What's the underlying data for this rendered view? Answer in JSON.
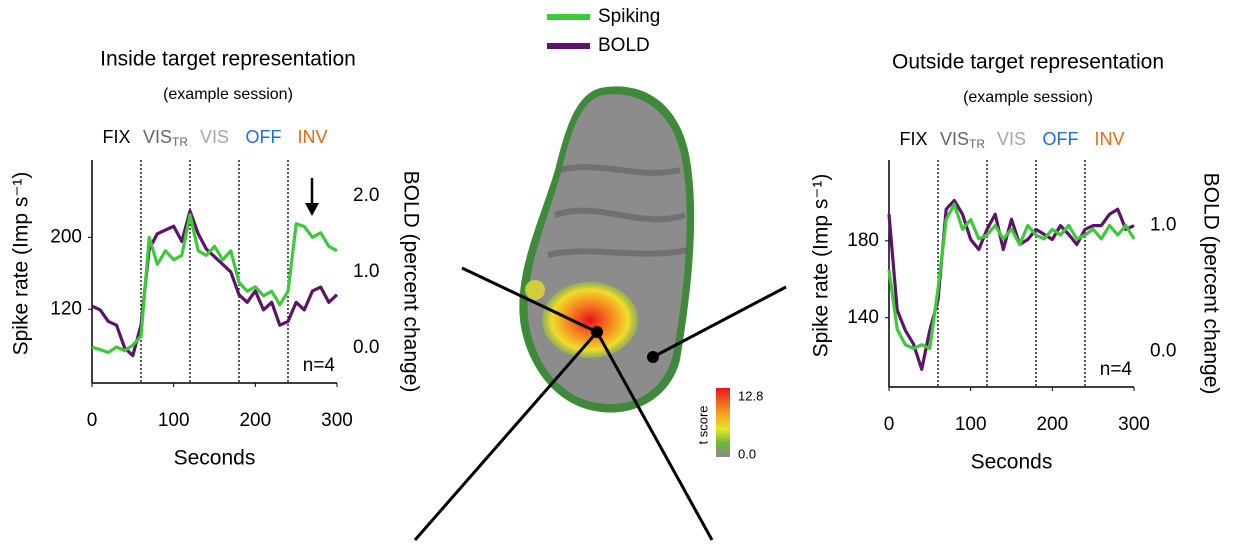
{
  "chart_data": [
    {
      "type": "line",
      "title": "Inside  target representation",
      "subtitle": "(example session)",
      "x_label": "Seconds",
      "y_label": "Spike rate (Imp s⁻¹)",
      "y2_label": "BOLD (percent change)",
      "annotation": "n=4",
      "phases": [
        {
          "label": "FIX",
          "color": "#000000"
        },
        {
          "label": "VIS",
          "sub": "TR",
          "color": "#666666"
        },
        {
          "label": "VIS",
          "color": "#a6a6a6"
        },
        {
          "label": "OFF",
          "color": "#1f6fd6"
        },
        {
          "label": "INV",
          "color": "#e86a10"
        }
      ],
      "xlines": [
        60,
        120,
        180,
        240
      ],
      "x": [
        0,
        10,
        20,
        30,
        40,
        50,
        60,
        70,
        80,
        90,
        100,
        110,
        120,
        130,
        140,
        150,
        160,
        170,
        180,
        190,
        200,
        210,
        220,
        230,
        240,
        250,
        260,
        270,
        280,
        290,
        300
      ],
      "series": [
        {
          "name": "Spiking",
          "color": "#3ec93a",
          "values": [
            78,
            75,
            72,
            78,
            74,
            80,
            90,
            200,
            170,
            185,
            175,
            180,
            225,
            185,
            180,
            190,
            175,
            185,
            150,
            140,
            145,
            135,
            140,
            125,
            140,
            215,
            212,
            200,
            205,
            190,
            185
          ]
        },
        {
          "name": "BOLD",
          "color": "#5c1468",
          "axis": "y2",
          "values": [
            0.55,
            0.5,
            0.35,
            0.3,
            0.0,
            -0.1,
            0.3,
            1.3,
            1.5,
            1.55,
            1.6,
            1.4,
            1.8,
            1.5,
            1.3,
            1.2,
            1.1,
            1.0,
            0.7,
            0.6,
            0.75,
            0.5,
            0.6,
            0.3,
            0.35,
            0.6,
            0.5,
            0.75,
            0.8,
            0.6,
            0.7
          ]
        }
      ],
      "xlim": [
        0,
        300
      ],
      "xticks": [
        0,
        100,
        200,
        300
      ],
      "ylim": [
        38,
        286
      ],
      "yticks": [
        120,
        200
      ],
      "y2lim": [
        -0.46,
        2.47
      ],
      "y2ticks": [
        {
          "value": 0,
          "label": "0.0"
        },
        {
          "value": 1,
          "label": "1.0"
        },
        {
          "value": 2,
          "label": "2.0"
        }
      ]
    },
    {
      "type": "line",
      "title": "Outside  target representation",
      "subtitle": "(example session)",
      "x_label": "Seconds",
      "y_label": "Spike rate (Imp s⁻¹)",
      "y2_label": "BOLD (percent change)",
      "annotation": "n=4",
      "phases": [
        {
          "label": "FIX",
          "color": "#000000"
        },
        {
          "label": "VIS",
          "sub": "TR",
          "color": "#666666"
        },
        {
          "label": "VIS",
          "color": "#a6a6a6"
        },
        {
          "label": "OFF",
          "color": "#1f6fd6"
        },
        {
          "label": "INV",
          "color": "#e86a10"
        }
      ],
      "xlines": [
        60,
        120,
        180,
        240
      ],
      "x": [
        0,
        10,
        20,
        30,
        40,
        50,
        60,
        70,
        80,
        90,
        100,
        110,
        120,
        130,
        140,
        150,
        160,
        170,
        180,
        190,
        200,
        210,
        220,
        230,
        240,
        250,
        260,
        270,
        280,
        290,
        300
      ],
      "series": [
        {
          "name": "Spiking",
          "color": "#3ec93a",
          "values": [
            165,
            134,
            126,
            124,
            126,
            124,
            155,
            191,
            199,
            186,
            191,
            181,
            183,
            188,
            181,
            186,
            178,
            188,
            183,
            181,
            186,
            183,
            188,
            181,
            183,
            186,
            181,
            188,
            183,
            188,
            181
          ]
        },
        {
          "name": "BOLD",
          "color": "#5c1468",
          "axis": "y2",
          "values": [
            1.09,
            0.33,
            0.17,
            0.06,
            -0.14,
            0.17,
            0.41,
            1.13,
            1.2,
            1.09,
            0.89,
            0.81,
            0.97,
            1.09,
            0.81,
            1.05,
            0.85,
            0.89,
            0.97,
            0.93,
            0.89,
            1.0,
            0.93,
            0.85,
            0.97,
            1.0,
            1.0,
            1.09,
            1.13,
            0.97,
            1.0
          ]
        }
      ],
      "xlim": [
        0,
        300
      ],
      "xticks": [
        0,
        100,
        200,
        300
      ],
      "ylim": [
        104,
        222
      ],
      "yticks": [
        140,
        180
      ],
      "y2lim": [
        -0.28,
        1.52
      ],
      "y2ticks": [
        {
          "value": 0,
          "label": "0.0"
        },
        {
          "value": 1,
          "label": "1.0"
        }
      ]
    }
  ],
  "colorbar": {
    "label": "t score",
    "max": 12.8,
    "min": {
      "value": 0,
      "label": "0.0"
    }
  }
}
